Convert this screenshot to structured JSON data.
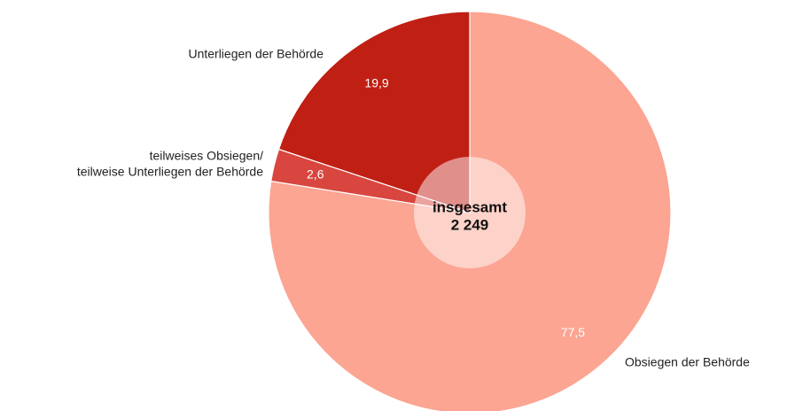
{
  "chart_data": {
    "type": "pie",
    "categories": [
      [
        "Obsiegen der Behörde"
      ],
      [
        "teilweises Obsiegen/",
        "teilweise Unterliegen der Behörde"
      ],
      [
        "Unterliegen der Behörde"
      ]
    ],
    "values": [
      77.5,
      2.6,
      19.9
    ],
    "value_labels": [
      "77,5",
      "2,6",
      "19,9"
    ],
    "colors": [
      "#fba592",
      "#d8463f",
      "#c01f14"
    ],
    "center_title": "insgesamt",
    "total": 2249,
    "total_label": "2 249"
  }
}
